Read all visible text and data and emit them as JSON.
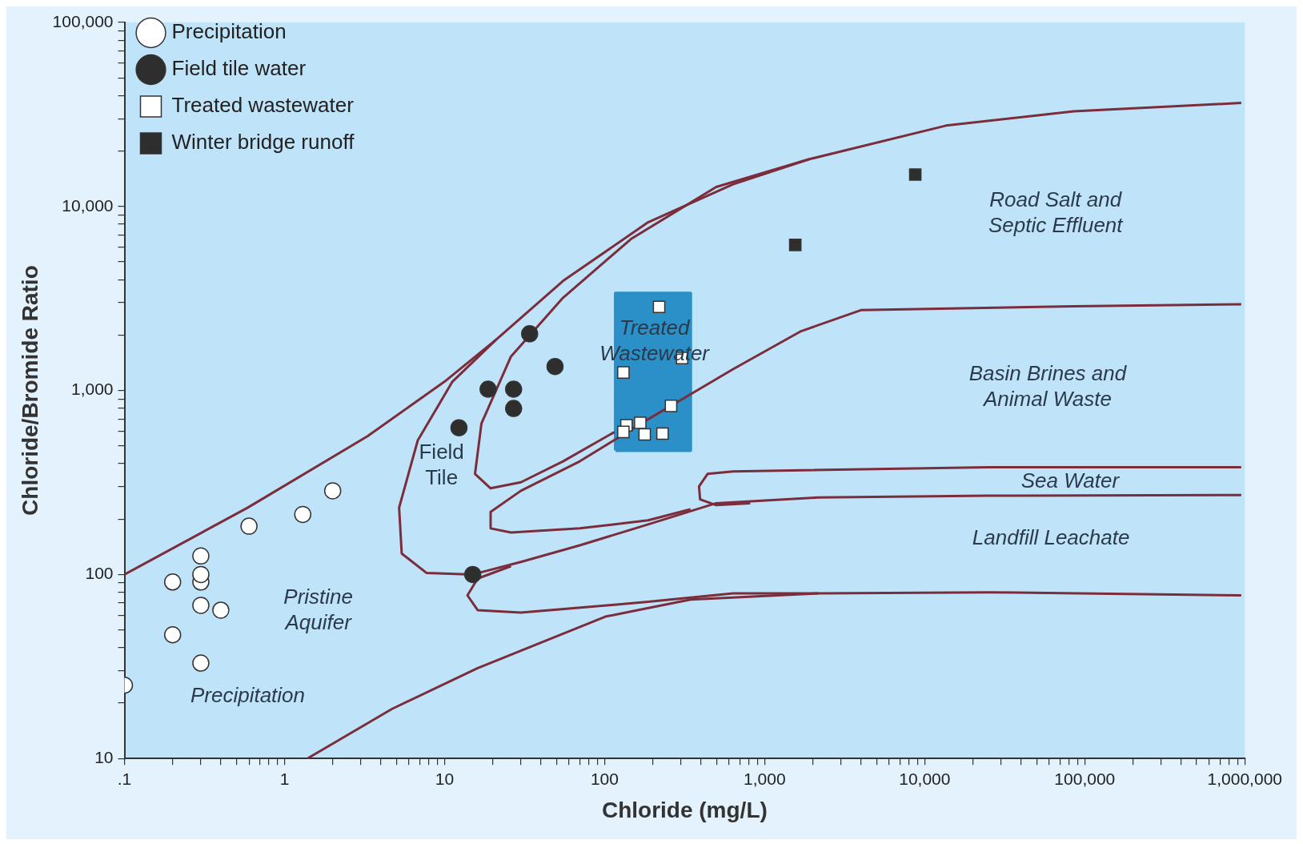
{
  "chart_data": {
    "type": "scatter",
    "xlabel": "Chloride (mg/L)",
    "ylabel": "Chloride/Bromide Ratio",
    "log": "xy",
    "legend": "top left",
    "grid": false,
    "xlim": [
      0.1,
      1000000
    ],
    "ylim": [
      10,
      100000
    ],
    "xticks": [
      {
        "value": 0.1,
        "label": ".1"
      },
      {
        "value": 0.2,
        "label": null
      },
      {
        "value": 0.3,
        "label": null
      },
      {
        "value": 0.4,
        "label": null
      },
      {
        "value": 0.5,
        "label": null
      },
      {
        "value": 0.6,
        "label": null
      },
      {
        "value": 0.7,
        "label": null
      },
      {
        "value": 0.8,
        "label": null
      },
      {
        "value": 0.9,
        "label": null
      },
      1,
      {
        "value": 2,
        "label": null
      },
      {
        "value": 3,
        "label": null
      },
      {
        "value": 4,
        "label": null
      },
      {
        "value": 5,
        "label": null
      },
      {
        "value": 6,
        "label": null
      },
      {
        "value": 7,
        "label": null
      },
      {
        "value": 8,
        "label": null
      },
      {
        "value": 9,
        "label": null
      },
      10,
      {
        "value": 20,
        "label": null
      },
      {
        "value": 30,
        "label": null
      },
      {
        "value": 40,
        "label": null
      },
      {
        "value": 50,
        "label": null
      },
      {
        "value": 60,
        "label": null
      },
      {
        "value": 70,
        "label": null
      },
      {
        "value": 80,
        "label": null
      },
      {
        "value": 90,
        "label": null
      },
      100,
      {
        "value": 200,
        "label": null
      },
      {
        "value": 300,
        "label": null
      },
      {
        "value": 400,
        "label": null
      },
      {
        "value": 500,
        "label": null
      },
      {
        "value": 600,
        "label": null
      },
      {
        "value": 700,
        "label": null
      },
      {
        "value": 800,
        "label": null
      },
      {
        "value": 900,
        "label": null
      },
      {
        "value": 1000,
        "label": "1,000"
      },
      {
        "value": 2000,
        "label": null
      },
      {
        "value": 3000,
        "label": null
      },
      {
        "value": 4000,
        "label": null
      },
      {
        "value": 5000,
        "label": null
      },
      {
        "value": 6000,
        "label": null
      },
      {
        "value": 7000,
        "label": null
      },
      {
        "value": 8000,
        "label": null
      },
      {
        "value": 9000,
        "label": null
      },
      {
        "value": 10000,
        "label": "10,000"
      },
      {
        "value": 20000,
        "label": null
      },
      {
        "value": 30000,
        "label": null
      },
      {
        "value": 40000,
        "label": null
      },
      {
        "value": 50000,
        "label": null
      },
      {
        "value": 60000,
        "label": null
      },
      {
        "value": 70000,
        "label": null
      },
      {
        "value": 80000,
        "label": null
      },
      {
        "value": 90000,
        "label": null
      },
      {
        "value": 100000,
        "label": "100,000"
      },
      {
        "value": 200000,
        "label": null
      },
      {
        "value": 300000,
        "label": null
      },
      {
        "value": 400000,
        "label": null
      },
      {
        "value": 500000,
        "label": null
      },
      {
        "value": 600000,
        "label": null
      },
      {
        "value": 700000,
        "label": null
      },
      {
        "value": 800000,
        "label": null
      },
      {
        "value": 900000,
        "label": null
      },
      {
        "value": 1000000,
        "label": "1,000,000"
      }
    ],
    "yticks": [
      10,
      {
        "value": 20,
        "label": null
      },
      {
        "value": 30,
        "label": null
      },
      {
        "value": 40,
        "label": null
      },
      {
        "value": 50,
        "label": null
      },
      {
        "value": 60,
        "label": null
      },
      {
        "value": 70,
        "label": null
      },
      {
        "value": 80,
        "label": null
      },
      {
        "value": 90,
        "label": null
      },
      100,
      {
        "value": 200,
        "label": null
      },
      {
        "value": 300,
        "label": null
      },
      {
        "value": 400,
        "label": null
      },
      {
        "value": 500,
        "label": null
      },
      {
        "value": 600,
        "label": null
      },
      {
        "value": 700,
        "label": null
      },
      {
        "value": 800,
        "label": null
      },
      {
        "value": 900,
        "label": null
      },
      {
        "value": 1000,
        "label": "1,000"
      },
      {
        "value": 2000,
        "label": null
      },
      {
        "value": 3000,
        "label": null
      },
      {
        "value": 4000,
        "label": null
      },
      {
        "value": 5000,
        "label": null
      },
      {
        "value": 6000,
        "label": null
      },
      {
        "value": 7000,
        "label": null
      },
      {
        "value": 8000,
        "label": null
      },
      {
        "value": 9000,
        "label": null
      },
      {
        "value": 10000,
        "label": "10,000"
      },
      {
        "value": 20000,
        "label": null
      },
      {
        "value": 30000,
        "label": null
      },
      {
        "value": 40000,
        "label": null
      },
      {
        "value": 50000,
        "label": null
      },
      {
        "value": 60000,
        "label": null
      },
      {
        "value": 70000,
        "label": null
      },
      {
        "value": 80000,
        "label": null
      },
      {
        "value": 90000,
        "label": null
      },
      {
        "value": 100000,
        "label": "100,000"
      }
    ],
    "series": [
      {
        "type": "area",
        "color": "#2b8fc8",
        "x": [
          117,
          117,
          344,
          344,
          117
        ],
        "values": [
          472,
          3370,
          3370,
          472,
          472
        ]
      },
      {
        "type": "line",
        "color": "#7b2d3b",
        "marker": "none",
        "x": [
          0.1,
          0.59,
          3.3,
          10,
          21,
          55,
          187,
          635,
          1900,
          13600,
          85300,
          950000
        ],
        "values": [
          100,
          231,
          564,
          1117,
          1888,
          3940,
          8200,
          13200,
          18060,
          27500,
          32900,
          36500
        ]
      },
      {
        "type": "line",
        "color": "#7b2d3b",
        "marker": "none",
        "x": [
          21,
          11.2,
          6.8,
          5.2,
          5.4,
          7.7,
          15,
          30,
          70,
          187,
          498,
          2160,
          25000,
          950000
        ],
        "values": [
          1888,
          1117,
          535,
          231,
          130,
          102,
          100,
          117,
          144,
          187,
          244,
          262,
          268,
          270
        ]
      },
      {
        "type": "line",
        "color": "#7b2d3b",
        "marker": "none",
        "x": [
          1900,
          498,
          146,
          55,
          26,
          17,
          15.5,
          19.4,
          30,
          55,
          115
        ],
        "values": [
          18060,
          12760,
          6650,
          3190,
          1530,
          661,
          352,
          294,
          317,
          412,
          594
        ]
      },
      {
        "type": "line",
        "color": "#7b2d3b",
        "marker": "none",
        "x": [
          950000,
          85300,
          3990,
          1690,
          635,
          187,
          70,
          30,
          19.4,
          19.4,
          26,
          70,
          187,
          344
        ],
        "values": [
          2940,
          2870,
          2730,
          2100,
          1306,
          697,
          412,
          285,
          219,
          178,
          169,
          178,
          197,
          226
        ]
      },
      {
        "type": "line",
        "color": "#7b2d3b",
        "marker": "none",
        "x": [
          950000,
          25000,
          635,
          440,
          389,
          395,
          498,
          812
        ],
        "values": [
          383,
          383,
          363,
          352,
          301,
          256,
          238,
          244
        ]
      },
      {
        "type": "line",
        "color": "#7b2d3b",
        "marker": "none",
        "x": [
          26,
          16.1,
          13.9,
          16.1,
          30,
          187,
          635,
          2160,
          25000,
          950000
        ],
        "values": [
          111,
          95,
          77,
          64,
          62,
          71,
          79,
          79,
          80,
          77
        ]
      },
      {
        "type": "line",
        "color": "#7b2d3b",
        "marker": "none",
        "x": [
          1.39,
          4.7,
          16.1,
          101,
          344,
          2160
        ],
        "values": [
          10,
          18.6,
          31,
          59,
          73,
          79
        ]
      },
      {
        "name": "Precipitation",
        "color": "#ffffff",
        "marker": "circle",
        "x": [
          0.1,
          0.2,
          0.3,
          0.3,
          0.4,
          0.2,
          0.3,
          0.3,
          0.3,
          0.6,
          1.3,
          2.0
        ],
        "values": [
          25,
          47,
          33,
          68,
          64,
          91,
          91,
          100,
          126,
          183,
          212,
          285
        ]
      },
      {
        "name": "Field tile water",
        "color": "#2e2e2e",
        "marker": "circle",
        "x": [
          15,
          12.3,
          18.7,
          27,
          27,
          34,
          49
        ],
        "values": [
          100,
          627,
          1016,
          1016,
          798,
          2032,
          1349
        ]
      },
      {
        "name": "Treated wastewater",
        "color": "#ffffff",
        "marker": "square",
        "x": [
          219,
          131,
          305,
          260,
          137,
          131,
          167,
          178,
          230
        ],
        "values": [
          2844,
          1253,
          1500,
          824,
          647,
          595,
          667,
          577,
          583
        ]
      },
      {
        "name": "Winter bridge runoff",
        "color": "#2e2e2e",
        "marker": "square",
        "x": [
          1553,
          8730
        ],
        "values": [
          6180,
          14900
        ]
      }
    ],
    "annotations": [
      "Road Salt and\nSeptic Effluent",
      "Treated\nWastewater",
      "Basin Brines and\nAnimal Waste",
      "Sea Water",
      "Landfill Leachate",
      "Field\nTile",
      "Pristine\nAquifer",
      "Precipitation"
    ]
  }
}
